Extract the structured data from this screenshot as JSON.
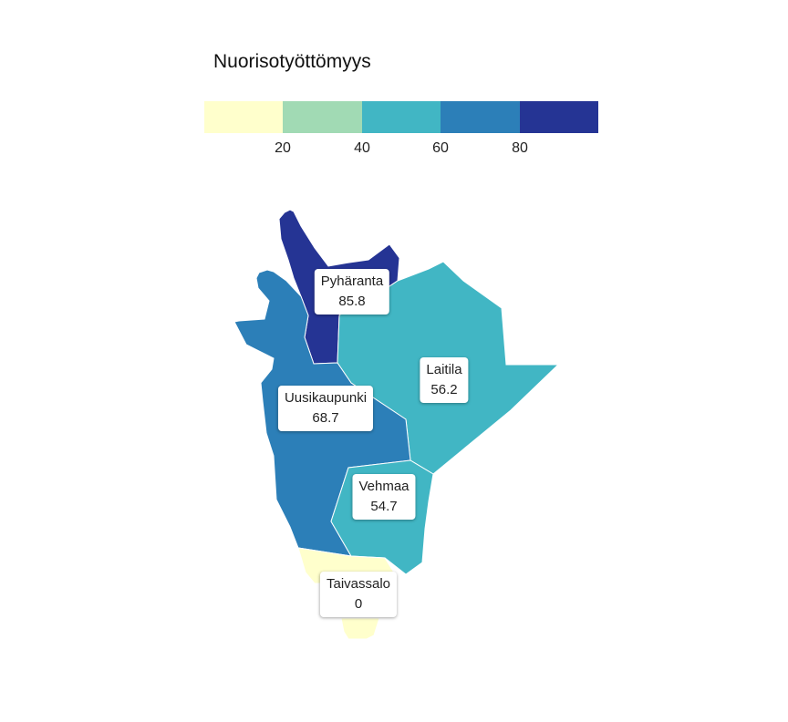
{
  "legend": {
    "title": "Nuorisotyöttömyys",
    "colors": [
      "#ffffcc",
      "#a1dab4",
      "#41b6c4",
      "#2c7fb8",
      "#253494"
    ],
    "ticks": [
      "20",
      "40",
      "60",
      "80"
    ]
  },
  "regions": [
    {
      "name": "Pyhäranta",
      "value": "85.8",
      "color": "#253494"
    },
    {
      "name": "Laitila",
      "value": "56.2",
      "color": "#41b6c4"
    },
    {
      "name": "Uusikaupunki",
      "value": "68.7",
      "color": "#2c7fb8"
    },
    {
      "name": "Vehmaa",
      "value": "54.7",
      "color": "#41b6c4"
    },
    {
      "name": "Taivassalo",
      "value": "0",
      "color": "#ffffcc"
    }
  ]
}
